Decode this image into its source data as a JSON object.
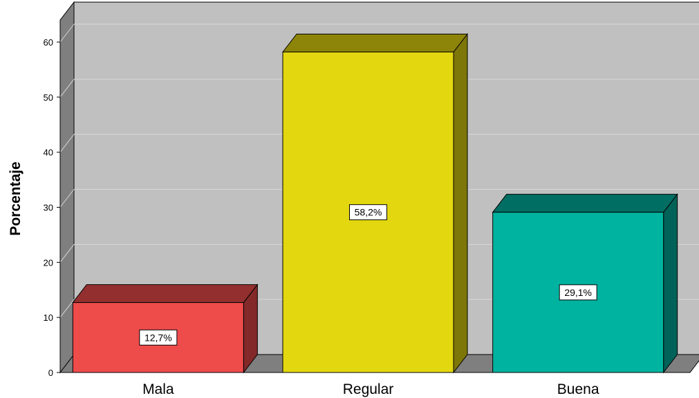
{
  "chart_data": {
    "type": "bar",
    "ylabel": "Porcentaje",
    "xlabel": "",
    "categories": [
      "Mala",
      "Regular",
      "Buena"
    ],
    "values": [
      12.7,
      58.2,
      29.1
    ],
    "data_labels": [
      "12,7%",
      "58,2%",
      "29,1%"
    ],
    "y_ticks": [
      0,
      10,
      20,
      30,
      40,
      50,
      60
    ],
    "ylim": [
      0,
      64
    ],
    "grid": true,
    "style": "3d",
    "bar_colors": [
      "#ee4b4b",
      "#e3d70f",
      "#00b2a0"
    ],
    "background_color": "#c0c0c0"
  }
}
